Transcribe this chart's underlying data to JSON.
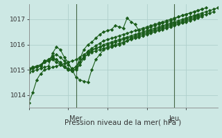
{
  "xlabel": "Pression niveau de la mer( hPa )",
  "bg_color": "#cde8e4",
  "grid_color": "#afd0cc",
  "line_color": "#1a5c1a",
  "xlim": [
    0,
    48
  ],
  "ylim": [
    1013.5,
    1017.6
  ],
  "yticks": [
    1014,
    1015,
    1016,
    1017
  ],
  "day_ticks": [
    {
      "x": 12,
      "label": "Mer"
    },
    {
      "x": 37,
      "label": "Jeu"
    }
  ],
  "series": [
    [
      [
        0,
        1013.7
      ],
      [
        1,
        1014.1
      ],
      [
        2,
        1014.6
      ],
      [
        3,
        1014.85
      ],
      [
        4,
        1015.0
      ],
      [
        5,
        1015.05
      ],
      [
        6,
        1015.1
      ],
      [
        7,
        1015.15
      ],
      [
        8,
        1015.2
      ],
      [
        9,
        1015.25
      ],
      [
        10,
        1015.3
      ],
      [
        11,
        1015.35
      ],
      [
        12,
        1015.4
      ],
      [
        13,
        1015.5
      ],
      [
        14,
        1015.6
      ],
      [
        15,
        1015.7
      ],
      [
        16,
        1015.8
      ],
      [
        17,
        1015.85
      ],
      [
        18,
        1015.9
      ],
      [
        19,
        1016.0
      ],
      [
        20,
        1016.05
      ],
      [
        21,
        1016.1
      ],
      [
        22,
        1016.15
      ],
      [
        23,
        1016.2
      ],
      [
        24,
        1016.25
      ],
      [
        25,
        1016.3
      ],
      [
        26,
        1016.35
      ],
      [
        27,
        1016.4
      ],
      [
        28,
        1016.45
      ],
      [
        29,
        1016.5
      ],
      [
        30,
        1016.55
      ],
      [
        31,
        1016.6
      ],
      [
        32,
        1016.65
      ],
      [
        33,
        1016.7
      ],
      [
        34,
        1016.75
      ],
      [
        35,
        1016.8
      ],
      [
        36,
        1016.85
      ],
      [
        37,
        1016.9
      ],
      [
        38,
        1016.95
      ],
      [
        39,
        1017.0
      ],
      [
        40,
        1017.05
      ],
      [
        41,
        1017.1
      ],
      [
        42,
        1017.15
      ],
      [
        43,
        1017.2
      ],
      [
        44,
        1017.25
      ],
      [
        45,
        1017.3
      ],
      [
        46,
        1017.35
      ],
      [
        47,
        1017.4
      ],
      [
        48,
        1017.45
      ]
    ],
    [
      [
        0,
        1014.9
      ],
      [
        1,
        1014.95
      ],
      [
        2,
        1015.0
      ],
      [
        3,
        1015.05
      ],
      [
        4,
        1015.1
      ],
      [
        5,
        1015.15
      ],
      [
        6,
        1015.65
      ],
      [
        7,
        1015.9
      ],
      [
        8,
        1015.8
      ],
      [
        9,
        1015.5
      ],
      [
        10,
        1015.3
      ],
      [
        11,
        1015.0
      ],
      [
        12,
        1014.7
      ],
      [
        13,
        1014.6
      ],
      [
        14,
        1014.55
      ],
      [
        15,
        1014.5
      ],
      [
        16,
        1015.0
      ],
      [
        17,
        1015.4
      ],
      [
        18,
        1015.6
      ],
      [
        19,
        1015.8
      ],
      [
        20,
        1015.85
      ],
      [
        21,
        1015.9
      ],
      [
        22,
        1015.95
      ],
      [
        23,
        1016.0
      ],
      [
        24,
        1016.05
      ],
      [
        25,
        1016.15
      ],
      [
        26,
        1016.25
      ],
      [
        27,
        1016.3
      ],
      [
        28,
        1016.35
      ],
      [
        29,
        1016.4
      ],
      [
        30,
        1016.45
      ],
      [
        31,
        1016.5
      ],
      [
        32,
        1016.55
      ],
      [
        33,
        1016.6
      ],
      [
        34,
        1016.65
      ],
      [
        35,
        1016.7
      ],
      [
        36,
        1016.75
      ],
      [
        37,
        1016.8
      ],
      [
        38,
        1016.85
      ],
      [
        39,
        1016.9
      ],
      [
        40,
        1016.95
      ],
      [
        41,
        1017.0
      ],
      [
        42,
        1017.05
      ],
      [
        43,
        1017.1
      ],
      [
        44,
        1017.15
      ],
      [
        45,
        1017.2
      ],
      [
        46,
        1017.25
      ],
      [
        47,
        1017.3
      ]
    ],
    [
      [
        0,
        1015.0
      ],
      [
        1,
        1015.05
      ],
      [
        2,
        1015.1
      ],
      [
        3,
        1015.15
      ],
      [
        4,
        1015.3
      ],
      [
        5,
        1015.35
      ],
      [
        6,
        1015.4
      ],
      [
        7,
        1015.3
      ],
      [
        8,
        1015.2
      ],
      [
        9,
        1015.1
      ],
      [
        10,
        1015.0
      ],
      [
        11,
        1014.95
      ],
      [
        12,
        1015.0
      ],
      [
        13,
        1015.2
      ],
      [
        14,
        1015.45
      ],
      [
        15,
        1015.65
      ],
      [
        16,
        1015.75
      ],
      [
        17,
        1015.85
      ],
      [
        18,
        1015.9
      ],
      [
        19,
        1015.95
      ],
      [
        20,
        1016.0
      ],
      [
        21,
        1016.05
      ],
      [
        22,
        1016.1
      ],
      [
        23,
        1016.15
      ],
      [
        24,
        1016.2
      ],
      [
        25,
        1016.25
      ],
      [
        26,
        1016.3
      ],
      [
        27,
        1016.35
      ],
      [
        28,
        1016.4
      ],
      [
        29,
        1016.45
      ],
      [
        30,
        1016.5
      ],
      [
        31,
        1016.55
      ],
      [
        32,
        1016.6
      ],
      [
        33,
        1016.65
      ],
      [
        34,
        1016.7
      ],
      [
        35,
        1016.75
      ],
      [
        36,
        1016.8
      ],
      [
        37,
        1016.85
      ],
      [
        38,
        1016.9
      ],
      [
        39,
        1016.95
      ],
      [
        40,
        1017.0
      ],
      [
        41,
        1017.05
      ],
      [
        42,
        1017.1
      ],
      [
        43,
        1017.15
      ],
      [
        44,
        1017.2
      ]
    ],
    [
      [
        0,
        1015.05
      ],
      [
        1,
        1015.1
      ],
      [
        2,
        1015.15
      ],
      [
        3,
        1015.2
      ],
      [
        4,
        1015.35
      ],
      [
        5,
        1015.4
      ],
      [
        6,
        1015.5
      ],
      [
        7,
        1015.4
      ],
      [
        8,
        1015.3
      ],
      [
        9,
        1015.15
      ],
      [
        10,
        1015.05
      ],
      [
        11,
        1015.0
      ],
      [
        12,
        1015.15
      ],
      [
        13,
        1015.3
      ],
      [
        14,
        1015.5
      ],
      [
        15,
        1015.6
      ],
      [
        16,
        1015.7
      ],
      [
        17,
        1015.75
      ],
      [
        18,
        1015.8
      ],
      [
        19,
        1015.85
      ],
      [
        20,
        1015.9
      ],
      [
        21,
        1015.95
      ],
      [
        22,
        1016.0
      ],
      [
        23,
        1016.05
      ],
      [
        24,
        1016.1
      ],
      [
        25,
        1016.15
      ],
      [
        26,
        1016.2
      ],
      [
        27,
        1016.25
      ],
      [
        28,
        1016.3
      ],
      [
        29,
        1016.35
      ],
      [
        30,
        1016.4
      ],
      [
        31,
        1016.45
      ],
      [
        32,
        1016.5
      ],
      [
        33,
        1016.55
      ],
      [
        34,
        1016.6
      ],
      [
        35,
        1016.65
      ],
      [
        36,
        1016.7
      ],
      [
        37,
        1016.75
      ],
      [
        38,
        1016.8
      ],
      [
        39,
        1016.85
      ],
      [
        40,
        1016.9
      ],
      [
        41,
        1016.95
      ],
      [
        42,
        1017.0
      ],
      [
        43,
        1017.05
      ],
      [
        44,
        1017.1
      ]
    ],
    [
      [
        0,
        1015.05
      ],
      [
        1,
        1015.1
      ],
      [
        2,
        1015.15
      ],
      [
        3,
        1015.2
      ],
      [
        4,
        1015.35
      ],
      [
        5,
        1015.4
      ],
      [
        6,
        1015.55
      ],
      [
        7,
        1015.6
      ],
      [
        8,
        1015.5
      ],
      [
        9,
        1015.35
      ],
      [
        10,
        1015.2
      ],
      [
        11,
        1015.05
      ],
      [
        12,
        1015.1
      ],
      [
        13,
        1015.45
      ],
      [
        14,
        1015.8
      ],
      [
        15,
        1016.0
      ],
      [
        16,
        1016.1
      ],
      [
        17,
        1016.25
      ],
      [
        18,
        1016.4
      ],
      [
        19,
        1016.5
      ],
      [
        20,
        1016.55
      ],
      [
        21,
        1016.6
      ],
      [
        22,
        1016.75
      ],
      [
        23,
        1016.7
      ],
      [
        24,
        1016.65
      ],
      [
        25,
        1017.05
      ],
      [
        26,
        1016.9
      ],
      [
        27,
        1016.8
      ],
      [
        28,
        1016.55
      ],
      [
        29,
        1016.6
      ],
      [
        30,
        1016.65
      ],
      [
        31,
        1016.7
      ],
      [
        32,
        1016.75
      ],
      [
        33,
        1016.8
      ],
      [
        34,
        1016.85
      ],
      [
        35,
        1016.9
      ],
      [
        36,
        1016.95
      ],
      [
        37,
        1017.0
      ],
      [
        38,
        1017.1
      ],
      [
        39,
        1017.15
      ],
      [
        40,
        1017.2
      ],
      [
        41,
        1017.25
      ],
      [
        42,
        1017.3
      ],
      [
        43,
        1017.35
      ],
      [
        44,
        1017.4
      ],
      [
        45,
        1017.45
      ]
    ],
    [
      [
        0,
        1015.0
      ],
      [
        1,
        1015.05
      ],
      [
        2,
        1015.1
      ],
      [
        3,
        1015.15
      ],
      [
        4,
        1015.3
      ],
      [
        5,
        1015.35
      ],
      [
        6,
        1015.45
      ],
      [
        7,
        1015.4
      ],
      [
        8,
        1015.25
      ],
      [
        9,
        1015.1
      ],
      [
        10,
        1015.0
      ],
      [
        11,
        1014.95
      ],
      [
        12,
        1015.05
      ],
      [
        13,
        1015.3
      ],
      [
        14,
        1015.55
      ],
      [
        15,
        1015.75
      ],
      [
        16,
        1015.85
      ],
      [
        17,
        1015.95
      ],
      [
        18,
        1016.05
      ],
      [
        19,
        1016.15
      ],
      [
        20,
        1016.2
      ],
      [
        21,
        1016.25
      ],
      [
        22,
        1016.3
      ],
      [
        23,
        1016.35
      ],
      [
        24,
        1016.4
      ],
      [
        25,
        1016.45
      ],
      [
        26,
        1016.5
      ],
      [
        27,
        1016.55
      ],
      [
        28,
        1016.6
      ],
      [
        29,
        1016.65
      ],
      [
        30,
        1016.7
      ],
      [
        31,
        1016.75
      ],
      [
        32,
        1016.8
      ],
      [
        33,
        1016.85
      ],
      [
        34,
        1016.9
      ],
      [
        35,
        1016.95
      ],
      [
        36,
        1017.0
      ],
      [
        37,
        1017.05
      ],
      [
        38,
        1017.1
      ],
      [
        39,
        1017.15
      ],
      [
        40,
        1017.2
      ],
      [
        41,
        1017.25
      ],
      [
        42,
        1017.3
      ],
      [
        43,
        1017.35
      ],
      [
        44,
        1017.4
      ]
    ]
  ]
}
